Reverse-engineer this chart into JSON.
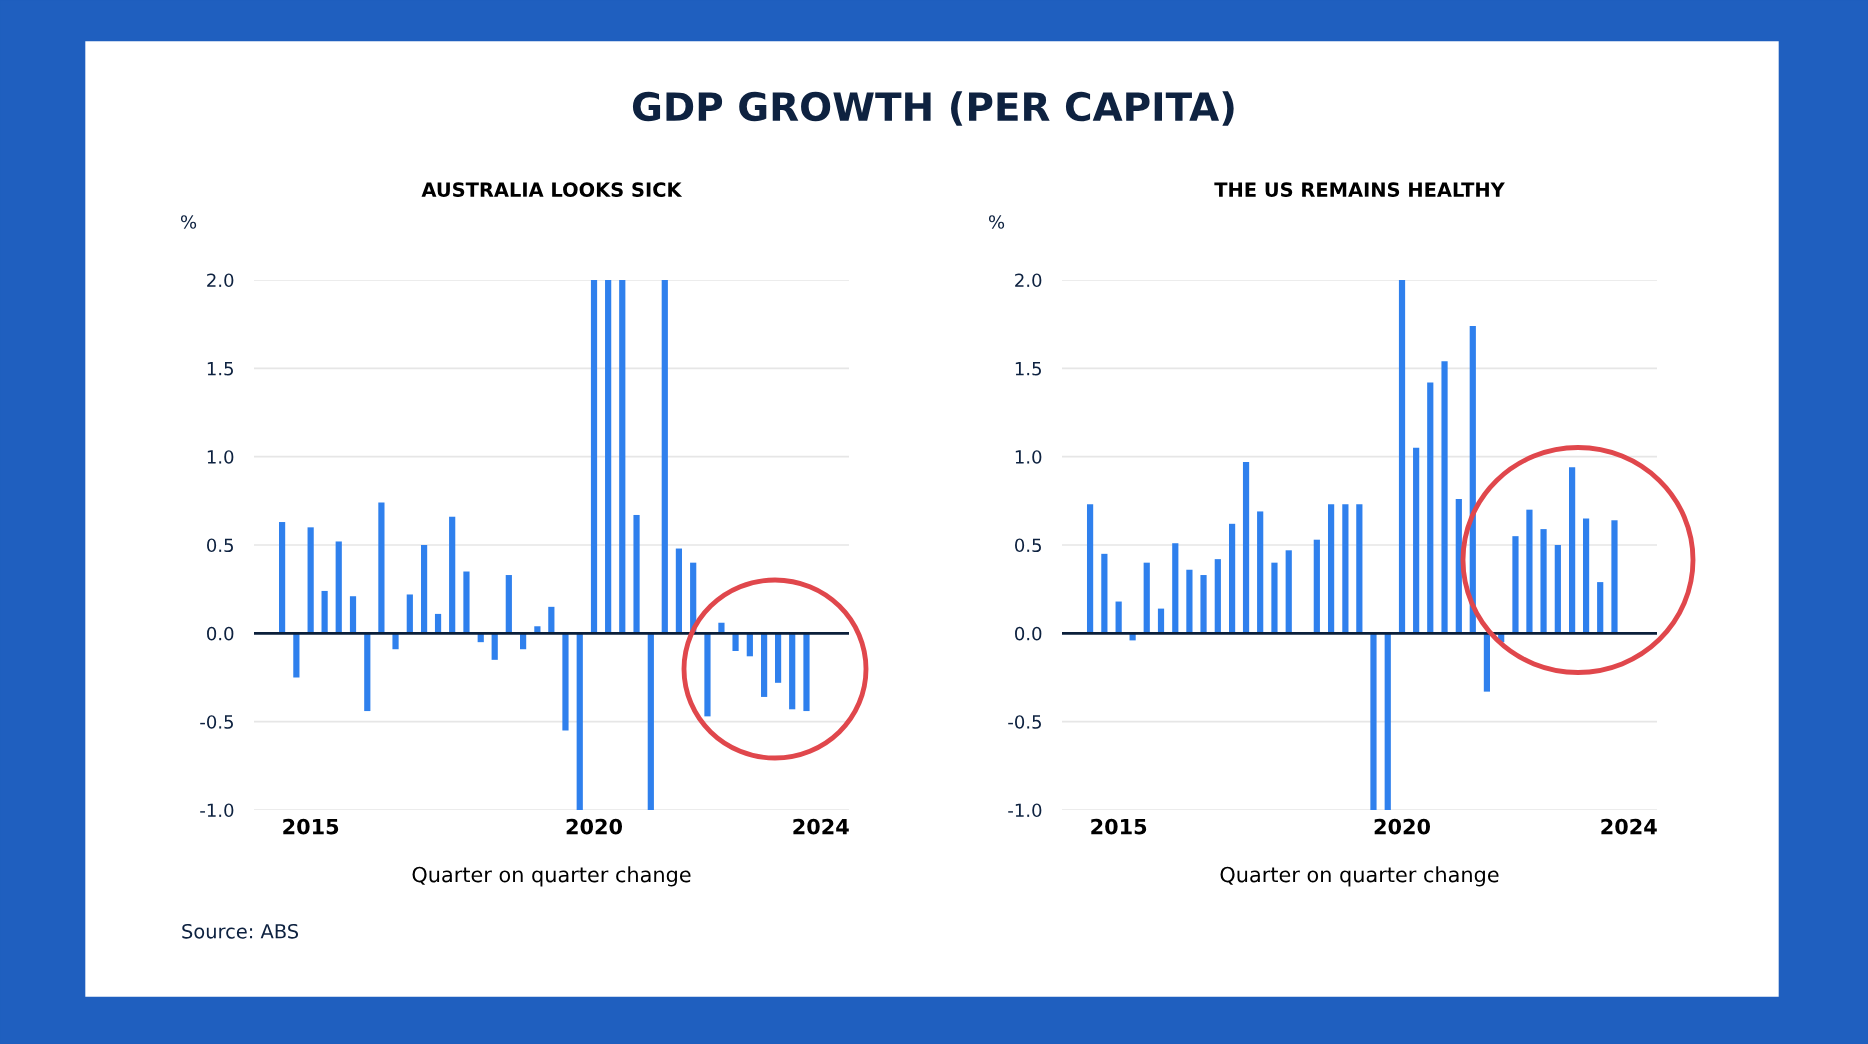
{
  "chart_data": [
    {
      "type": "bar",
      "title": "AUSTRALIA LOOKS SICK",
      "ylabel": "%",
      "xlabel": "Quarter on quarter change",
      "annotations": [
        "GDP GROWTH (PER CAPITA)",
        "Source: ABS"
      ],
      "x": [
        "2014-07",
        "2014-10",
        "2015-01",
        "2015-04",
        "2015-07",
        "2015-10",
        "2016-01",
        "2016-04",
        "2016-07",
        "2016-10",
        "2017-01",
        "2017-04",
        "2017-07",
        "2017-10",
        "2018-01",
        "2018-04",
        "2018-07",
        "2018-10",
        "2019-01",
        "2019-04",
        "2019-07",
        "2019-10",
        "2020-01",
        "2020-04",
        "2020-07",
        "2020-10",
        "2021-01",
        "2021-04",
        "2021-07",
        "2021-10",
        "2022-01",
        "2022-04",
        "2022-07",
        "2022-10",
        "2023-01",
        "2023-04",
        "2023-07",
        "2023-10"
      ],
      "values": [
        0.63,
        -0.25,
        0.6,
        0.24,
        0.52,
        0.21,
        -0.44,
        0.74,
        -0.09,
        0.22,
        0.5,
        0.11,
        0.66,
        0.35,
        -0.05,
        -0.15,
        0.33,
        -0.09,
        0.04,
        0.15,
        -0.55,
        -1.0,
        2.0,
        2.0,
        2.0,
        0.67,
        -1.0,
        2.0,
        0.48,
        0.4,
        -0.47,
        0.06,
        -0.1,
        -0.13,
        -0.36,
        -0.28,
        -0.43,
        -0.44
      ],
      "color": "#2f80ed",
      "xlim": [
        "2014-01",
        "2024-07"
      ],
      "xticks": [
        "2015",
        "2020",
        "2024"
      ],
      "ylim": [
        -1.0,
        2.0
      ],
      "yticks": [
        {
          "value": -1.0,
          "label": "-1.0"
        },
        {
          "value": -0.5,
          "label": "-0.5"
        },
        {
          "value": 0.0,
          "label": "0.0"
        },
        {
          "value": 0.5,
          "label": "0.5"
        },
        {
          "value": 1.0,
          "label": "1.0"
        },
        {
          "value": 1.5,
          "label": "1.5"
        },
        {
          "value": 2.0,
          "label": "2.0"
        }
      ],
      "grid": "y",
      "ref_lines": [
        {
          "axis": "y",
          "value": 0,
          "label": null,
          "color": "#0b1f3a"
        }
      ]
    },
    {
      "type": "bar",
      "title": "THE US REMAINS HEALTHY",
      "ylabel": "%",
      "xlabel": "Quarter on quarter change",
      "x": [
        "2014-07",
        "2014-10",
        "2015-01",
        "2015-04",
        "2015-07",
        "2015-10",
        "2016-01",
        "2016-04",
        "2016-07",
        "2016-10",
        "2017-01",
        "2017-04",
        "2017-07",
        "2017-10",
        "2018-01",
        "2018-04",
        "2018-07",
        "2018-10",
        "2019-01",
        "2019-04",
        "2019-07",
        "2019-10",
        "2020-01",
        "2020-04",
        "2020-07",
        "2020-10",
        "2021-01",
        "2021-04",
        "2021-07",
        "2021-10",
        "2022-01",
        "2022-04",
        "2022-07",
        "2022-10",
        "2023-01",
        "2023-04",
        "2023-07",
        "2023-10"
      ],
      "values": [
        0.73,
        0.45,
        0.18,
        -0.04,
        0.4,
        0.14,
        0.51,
        0.36,
        0.33,
        0.42,
        0.62,
        0.97,
        0.69,
        0.4,
        0.47,
        0.0,
        0.53,
        0.73,
        0.73,
        0.73,
        -1.0,
        -1.0,
        2.0,
        1.05,
        1.42,
        1.54,
        0.76,
        1.74,
        -0.33,
        -0.05,
        0.55,
        0.7,
        0.59,
        0.5,
        0.94,
        0.65,
        0.29,
        0.64
      ],
      "color": "#2f80ed",
      "xlim": [
        "2014-01",
        "2024-07"
      ],
      "xticks": [
        "2015",
        "2020",
        "2024"
      ],
      "ylim": [
        -1.0,
        2.0
      ],
      "yticks": [
        {
          "value": -1.0,
          "label": "-1.0"
        },
        {
          "value": -0.5,
          "label": "-0.5"
        },
        {
          "value": 0.0,
          "label": "0.0"
        },
        {
          "value": 0.5,
          "label": "0.5"
        },
        {
          "value": 1.0,
          "label": "1.0"
        },
        {
          "value": 1.5,
          "label": "1.5"
        },
        {
          "value": 2.0,
          "label": "2.0"
        }
      ],
      "grid": "y",
      "ref_lines": [
        {
          "axis": "y",
          "value": 0,
          "label": null,
          "color": "#0b1f3a"
        }
      ]
    }
  ]
}
